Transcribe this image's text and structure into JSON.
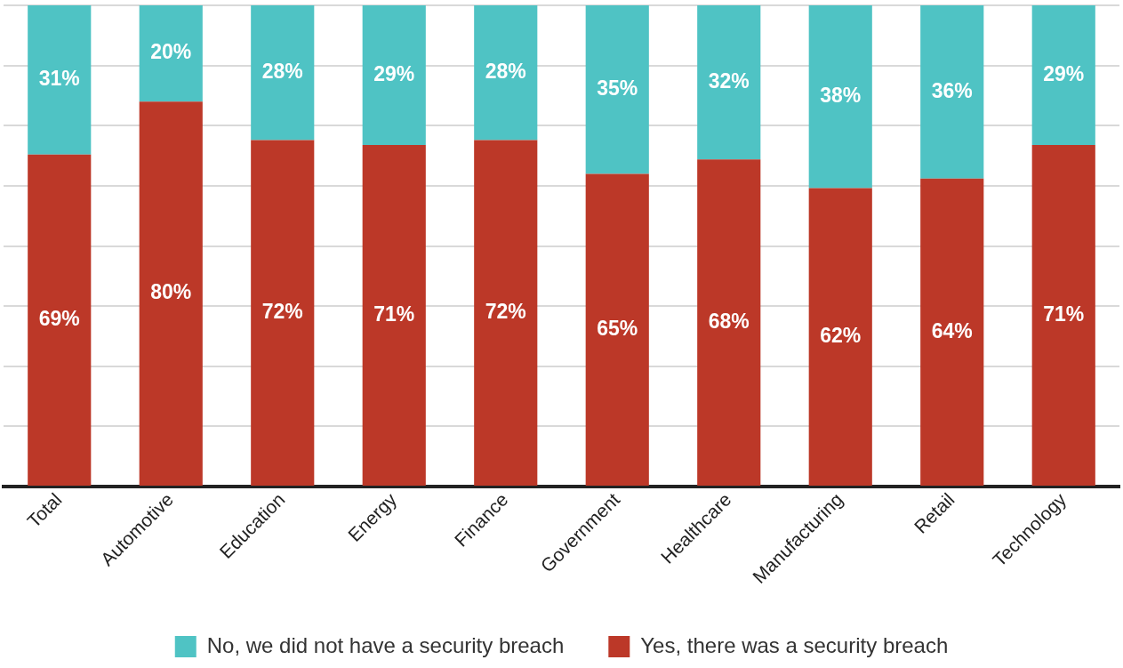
{
  "chart_data": {
    "type": "bar",
    "stacked": true,
    "categories": [
      "Total",
      "Automotive",
      "Education",
      "Energy",
      "Finance",
      "Government",
      "Healthcare",
      "Manufacturing",
      "Retail",
      "Technology"
    ],
    "series": [
      {
        "name": "Yes, there was a security breach",
        "color": "#bc3828",
        "values": [
          69,
          80,
          72,
          71,
          72,
          65,
          68,
          62,
          64,
          71
        ],
        "value_labels": [
          "69%",
          "80%",
          "72%",
          "71%",
          "72%",
          "65%",
          "68%",
          "62%",
          "64%",
          "71%"
        ]
      },
      {
        "name": "No, we did not have a security breach",
        "color": "#4fc3c4",
        "values": [
          31,
          20,
          28,
          29,
          28,
          35,
          32,
          38,
          36,
          29
        ],
        "value_labels": [
          "31%",
          "20%",
          "28%",
          "29%",
          "28%",
          "35%",
          "32%",
          "38%",
          "36%",
          "29%"
        ]
      }
    ],
    "ylim": [
      0,
      100
    ],
    "yticks": [
      {
        "value": 0,
        "label": null
      },
      {
        "value": 12.5,
        "label": null
      },
      {
        "value": 25,
        "label": null
      },
      {
        "value": 37.5,
        "label": null
      },
      {
        "value": 50,
        "label": null
      },
      {
        "value": 62.5,
        "label": null
      },
      {
        "value": 75,
        "label": null
      },
      {
        "value": 87.5,
        "label": null
      },
      {
        "value": 100,
        "label": null
      }
    ],
    "tick_labels": "x",
    "grid": "y",
    "legend": "bottom"
  }
}
